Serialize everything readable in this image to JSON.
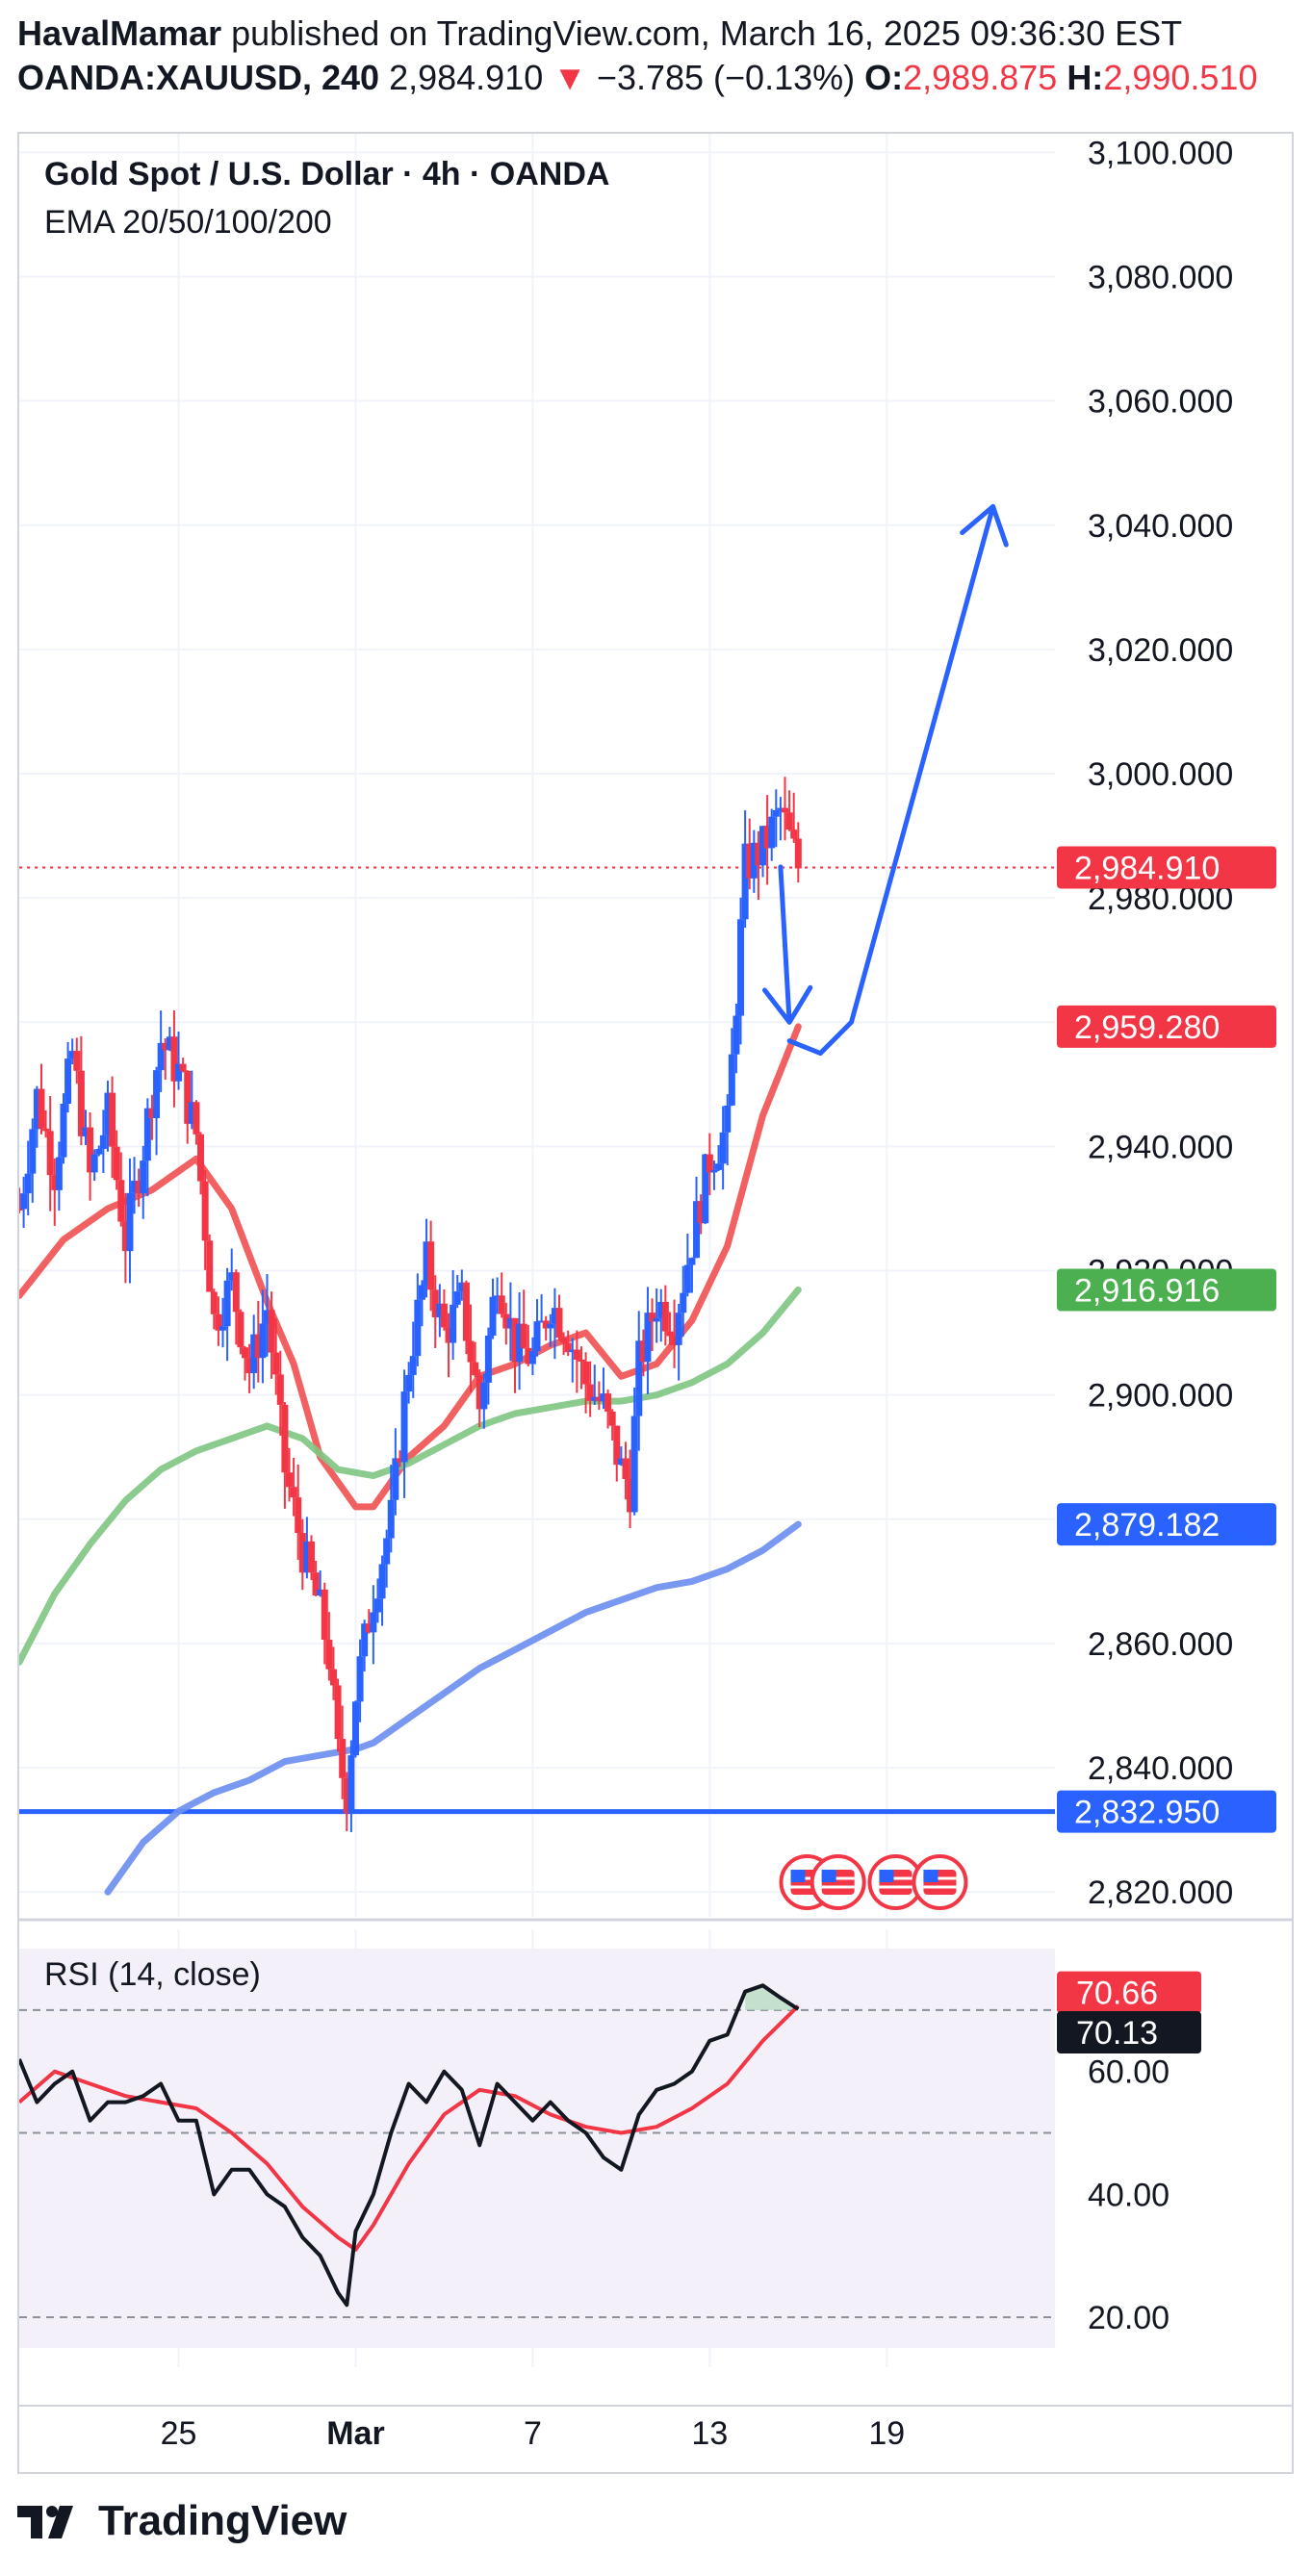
{
  "header": {
    "publisher": "HavalMamar",
    "published_text": "published on TradingView.com, March 16, 2025 09:36:30 EST",
    "symbol": "OANDA:XAUUSD, 240",
    "last": "2,984.910",
    "change": "−3.785 (−0.13%)",
    "open_label": "O:",
    "open": "2,989.875",
    "high_label": "H:",
    "high": "2,990.510"
  },
  "legend": {
    "title": "Gold Spot / U.S. Dollar · 4h · OANDA",
    "indicator": "EMA 20/50/100/200",
    "rsi_label": "RSI (14, close)"
  },
  "footer": {
    "brand": "TradingView"
  },
  "colors": {
    "up": "#2962ff",
    "down": "#f23645",
    "ema20": "#f05454",
    "ema50": "#81c784",
    "ema100": "#6c8ff0",
    "rsi": "#131722",
    "rsi_ma": "#f23645",
    "rsi_bg": "#f3f0fa"
  },
  "chart_data": {
    "type": "candlestick",
    "title": "Gold Spot / U.S. Dollar · 4h · OANDA",
    "y_ticks": [
      2820,
      2840,
      2860,
      2880,
      2900,
      2920,
      2940,
      2960,
      2980,
      3000,
      3020,
      3040,
      3060,
      3080,
      3100
    ],
    "y_tick_labels": [
      "2,820.000",
      "2,840.000",
      "2,860.000",
      "",
      "2,900.000",
      "2,920.000",
      "2,940.000",
      "",
      "2,980.000",
      "3,000.000",
      "3,020.000",
      "3,040.000",
      "3,060.000",
      "3,080.000",
      "3,100.000"
    ],
    "ylim": [
      2816,
      3103
    ],
    "x_ticks": [
      {
        "label": "25",
        "t": 18
      },
      {
        "label": "Mar",
        "t": 38
      },
      {
        "label": "7",
        "t": 58
      },
      {
        "label": "13",
        "t": 78
      },
      {
        "label": "19",
        "t": 98
      }
    ],
    "xlim": [
      0,
      117
    ],
    "price_labels": [
      {
        "value": 2984.91,
        "text": "2,984.910",
        "kind": "last"
      },
      {
        "value": 2959.28,
        "text": "2,959.280",
        "kind": "ema20"
      },
      {
        "value": 2916.916,
        "text": "2,916.916",
        "kind": "ema50"
      },
      {
        "value": 2879.182,
        "text": "2,879.182",
        "kind": "ema100"
      },
      {
        "value": 2832.95,
        "text": "2,832.950",
        "kind": "hline"
      }
    ],
    "horizontal_line": 2832.95,
    "price_path": [
      [
        0,
        2930
      ],
      [
        2,
        2948
      ],
      [
        4,
        2936
      ],
      [
        6,
        2955
      ],
      [
        8,
        2935
      ],
      [
        10,
        2945
      ],
      [
        12,
        2925
      ],
      [
        14,
        2940
      ],
      [
        16,
        2957
      ],
      [
        18,
        2952
      ],
      [
        20,
        2942
      ],
      [
        22,
        2912
      ],
      [
        24,
        2918
      ],
      [
        26,
        2904
      ],
      [
        28,
        2914
      ],
      [
        30,
        2888
      ],
      [
        32,
        2875
      ],
      [
        34,
        2865
      ],
      [
        35,
        2858
      ],
      [
        36,
        2842
      ],
      [
        37,
        2836
      ],
      [
        38,
        2852
      ],
      [
        40,
        2868
      ],
      [
        42,
        2880
      ],
      [
        44,
        2905
      ],
      [
        46,
        2921
      ],
      [
        48,
        2910
      ],
      [
        50,
        2915
      ],
      [
        52,
        2898
      ],
      [
        54,
        2920
      ],
      [
        56,
        2908
      ],
      [
        58,
        2906
      ],
      [
        60,
        2915
      ],
      [
        62,
        2910
      ],
      [
        64,
        2902
      ],
      [
        66,
        2898
      ],
      [
        68,
        2888
      ],
      [
        69,
        2885
      ],
      [
        70,
        2905
      ],
      [
        72,
        2915
      ],
      [
        74,
        2912
      ],
      [
        76,
        2925
      ],
      [
        78,
        2938
      ],
      [
        80,
        2943
      ],
      [
        82,
        2985
      ],
      [
        84,
        2988
      ],
      [
        86,
        2994
      ],
      [
        88,
        2985
      ]
    ],
    "series": [
      {
        "name": "EMA 20",
        "values": [
          [
            0,
            2916
          ],
          [
            5,
            2925
          ],
          [
            10,
            2930
          ],
          [
            15,
            2933
          ],
          [
            20,
            2938
          ],
          [
            24,
            2930
          ],
          [
            28,
            2915
          ],
          [
            31,
            2905
          ],
          [
            34,
            2890
          ],
          [
            38,
            2882
          ],
          [
            40,
            2882
          ],
          [
            44,
            2890
          ],
          [
            48,
            2895
          ],
          [
            52,
            2903
          ],
          [
            56,
            2905
          ],
          [
            60,
            2908
          ],
          [
            64,
            2910
          ],
          [
            68,
            2903
          ],
          [
            72,
            2905
          ],
          [
            76,
            2912
          ],
          [
            80,
            2924
          ],
          [
            84,
            2945
          ],
          [
            88,
            2959.28
          ]
        ]
      },
      {
        "name": "EMA 50",
        "values": [
          [
            0,
            2857
          ],
          [
            4,
            2868
          ],
          [
            8,
            2876
          ],
          [
            12,
            2883
          ],
          [
            16,
            2888
          ],
          [
            20,
            2891
          ],
          [
            24,
            2893
          ],
          [
            28,
            2895
          ],
          [
            32,
            2893
          ],
          [
            36,
            2888
          ],
          [
            40,
            2887
          ],
          [
            44,
            2889
          ],
          [
            48,
            2892
          ],
          [
            52,
            2895
          ],
          [
            56,
            2897
          ],
          [
            60,
            2898
          ],
          [
            64,
            2899
          ],
          [
            68,
            2899
          ],
          [
            72,
            2900
          ],
          [
            76,
            2902
          ],
          [
            80,
            2905
          ],
          [
            84,
            2910
          ],
          [
            88,
            2916.916
          ]
        ]
      },
      {
        "name": "EMA 100",
        "values": [
          [
            10,
            2820
          ],
          [
            14,
            2828
          ],
          [
            18,
            2833
          ],
          [
            22,
            2836
          ],
          [
            26,
            2838
          ],
          [
            30,
            2841
          ],
          [
            34,
            2842
          ],
          [
            38,
            2843
          ],
          [
            40,
            2844
          ],
          [
            44,
            2848
          ],
          [
            48,
            2852
          ],
          [
            52,
            2856
          ],
          [
            56,
            2859
          ],
          [
            60,
            2862
          ],
          [
            64,
            2865
          ],
          [
            68,
            2867
          ],
          [
            72,
            2869
          ],
          [
            76,
            2870
          ],
          [
            80,
            2872
          ],
          [
            84,
            2875
          ],
          [
            88,
            2879.182
          ]
        ]
      }
    ],
    "projection": [
      {
        "points": [
          [
            86,
            2985
          ],
          [
            87,
            2960
          ]
        ],
        "arrow": "down"
      },
      {
        "points": [
          [
            87,
            2957
          ],
          [
            90.5,
            2955
          ],
          [
            94,
            2960
          ]
        ],
        "arrow": "none"
      },
      {
        "points": [
          [
            94,
            2960
          ],
          [
            110,
            3043
          ]
        ],
        "arrow": "up"
      }
    ],
    "events": [
      89,
      92.5,
      99,
      104
    ],
    "rsi": {
      "name": "RSI (14, close)",
      "ylim": [
        15,
        80
      ],
      "levels": [
        70,
        50,
        20
      ],
      "ticks": [
        20,
        40,
        60
      ],
      "tick_labels": [
        "20.00",
        "40.00",
        "60.00"
      ],
      "badges": [
        {
          "value": 70.66,
          "text": "70.66",
          "kind": "ma"
        },
        {
          "value": 70.13,
          "text": "70.13",
          "kind": "rsi"
        }
      ],
      "values": [
        [
          0,
          62
        ],
        [
          2,
          55
        ],
        [
          4,
          58
        ],
        [
          6,
          60
        ],
        [
          8,
          52
        ],
        [
          10,
          55
        ],
        [
          12,
          55
        ],
        [
          14,
          56
        ],
        [
          16,
          58
        ],
        [
          18,
          52
        ],
        [
          20,
          52
        ],
        [
          22,
          40
        ],
        [
          24,
          44
        ],
        [
          26,
          44
        ],
        [
          28,
          40
        ],
        [
          30,
          38
        ],
        [
          32,
          33
        ],
        [
          34,
          30
        ],
        [
          36,
          24
        ],
        [
          37,
          22
        ],
        [
          38,
          34
        ],
        [
          40,
          40
        ],
        [
          42,
          50
        ],
        [
          44,
          58
        ],
        [
          46,
          55
        ],
        [
          48,
          60
        ],
        [
          50,
          57
        ],
        [
          52,
          48
        ],
        [
          54,
          58
        ],
        [
          56,
          55
        ],
        [
          58,
          52
        ],
        [
          60,
          55
        ],
        [
          62,
          52
        ],
        [
          64,
          50
        ],
        [
          66,
          46
        ],
        [
          68,
          44
        ],
        [
          70,
          53
        ],
        [
          72,
          57
        ],
        [
          74,
          58
        ],
        [
          76,
          60
        ],
        [
          78,
          65
        ],
        [
          80,
          66
        ],
        [
          82,
          73
        ],
        [
          84,
          74
        ],
        [
          86,
          72
        ],
        [
          88,
          70.13
        ]
      ],
      "ma": [
        [
          0,
          55
        ],
        [
          4,
          60
        ],
        [
          8,
          58
        ],
        [
          12,
          56
        ],
        [
          16,
          55
        ],
        [
          20,
          54
        ],
        [
          24,
          50
        ],
        [
          28,
          45
        ],
        [
          32,
          38
        ],
        [
          36,
          33
        ],
        [
          38,
          31
        ],
        [
          40,
          35
        ],
        [
          44,
          45
        ],
        [
          48,
          53
        ],
        [
          52,
          57
        ],
        [
          56,
          56
        ],
        [
          60,
          53
        ],
        [
          64,
          51
        ],
        [
          68,
          50
        ],
        [
          72,
          51
        ],
        [
          76,
          54
        ],
        [
          80,
          58
        ],
        [
          84,
          65
        ],
        [
          88,
          70.66
        ]
      ]
    }
  }
}
